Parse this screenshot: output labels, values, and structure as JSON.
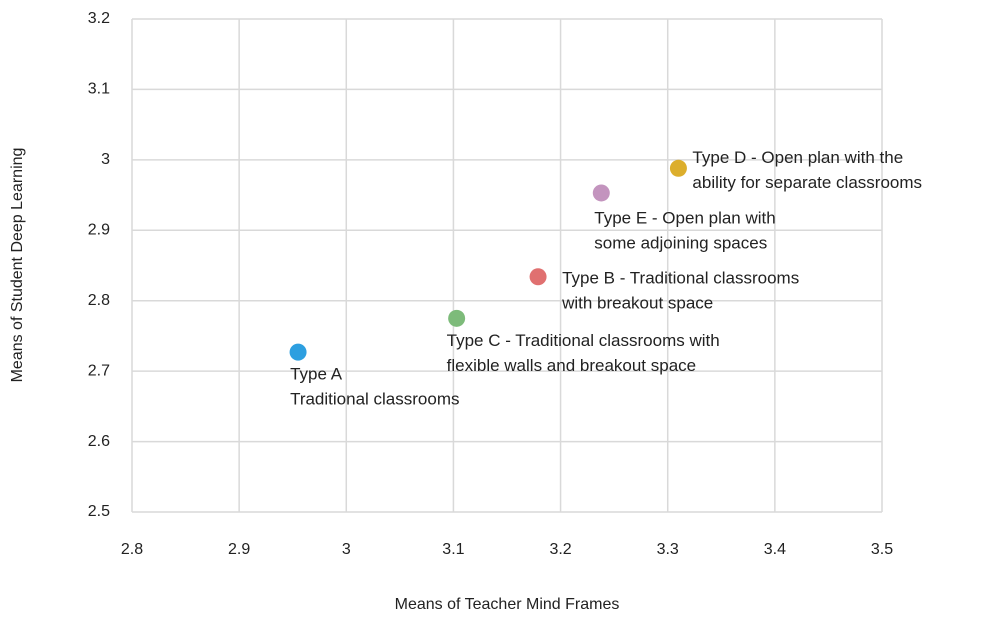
{
  "chart_data": {
    "type": "scatter",
    "x_label": "Means of Teacher Mind Frames",
    "y_label": "Means of Student Deep Learning",
    "x": [
      2.955,
      3.103,
      3.179,
      3.238,
      3.31
    ],
    "y": [
      2.727,
      2.775,
      2.834,
      2.953,
      2.988
    ],
    "colors": [
      "#2d9fe0",
      "#7dbb7a",
      "#e07070",
      "#c394be",
      "#dcae2c"
    ],
    "labels": [
      [
        "Type A",
        "Traditional classrooms"
      ],
      [
        "Type C - Traditional classrooms with",
        "flexible walls and breakout space"
      ],
      [
        "Type B - Traditional classrooms",
        "with breakout space"
      ],
      [
        "Type E - Open plan with",
        "some adjoining spaces"
      ],
      [
        "Type D - Open plan with the",
        "ability for separate classrooms"
      ]
    ],
    "xlim": [
      2.8,
      3.5
    ],
    "xticks": [
      2.8,
      2.9,
      3,
      3.1,
      3.2,
      3.3,
      3.4,
      3.5
    ],
    "ylim": [
      2.5,
      3.2
    ],
    "yticks": [
      2.5,
      2.6,
      2.7,
      2.8,
      2.9,
      3,
      3.1,
      3.2
    ],
    "grid": true
  }
}
